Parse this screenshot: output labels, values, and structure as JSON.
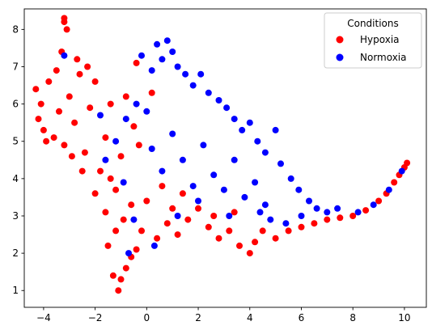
{
  "chart_data": {
    "type": "scatter",
    "title": "",
    "xlabel": "",
    "ylabel": "",
    "xlim": [
      -4.75,
      10.85
    ],
    "ylim": [
      0.55,
      8.55
    ],
    "xticks": [
      -4,
      -2,
      0,
      2,
      4,
      6,
      8,
      10
    ],
    "yticks": [
      1,
      2,
      3,
      4,
      5,
      6,
      7,
      8
    ],
    "xtick_labels": [
      "−4",
      "−2",
      "0",
      "2",
      "4",
      "6",
      "8",
      "10"
    ],
    "ytick_labels": [
      "1",
      "2",
      "3",
      "4",
      "5",
      "6",
      "7",
      "8"
    ],
    "grid": false,
    "legend": {
      "title": "Conditions",
      "position": "top-right",
      "entries": [
        {
          "label": "Hypoxia",
          "color": "#ff0000"
        },
        {
          "label": "Normoxia",
          "color": "#0000ff"
        }
      ]
    },
    "series": [
      {
        "name": "Hypoxia",
        "color": "#ff0000",
        "points": [
          [
            -4.3,
            6.4
          ],
          [
            -4.1,
            6.0
          ],
          [
            -4.2,
            5.6
          ],
          [
            -4.0,
            5.3
          ],
          [
            -3.8,
            6.6
          ],
          [
            -3.6,
            5.1
          ],
          [
            -3.5,
            6.9
          ],
          [
            -3.3,
            7.4
          ],
          [
            -3.2,
            4.9
          ],
          [
            -3.0,
            6.2
          ],
          [
            -2.8,
            5.5
          ],
          [
            -2.6,
            6.8
          ],
          [
            -2.4,
            4.7
          ],
          [
            -2.2,
            5.9
          ],
          [
            -2.0,
            6.6
          ],
          [
            -1.8,
            4.2
          ],
          [
            -1.6,
            5.1
          ],
          [
            -1.4,
            6.0
          ],
          [
            -1.2,
            3.7
          ],
          [
            -1.0,
            4.6
          ],
          [
            -0.8,
            6.2
          ],
          [
            -0.6,
            3.3
          ],
          [
            -0.4,
            7.1
          ],
          [
            -0.2,
            2.6
          ],
          [
            0.0,
            3.4
          ],
          [
            0.2,
            6.3
          ],
          [
            -3.2,
            8.2
          ],
          [
            -3.1,
            8.0
          ],
          [
            -3.2,
            8.3
          ],
          [
            -1.1,
            1.0
          ],
          [
            -1.0,
            1.3
          ],
          [
            -0.8,
            1.6
          ],
          [
            -0.6,
            1.9
          ],
          [
            -0.4,
            2.1
          ],
          [
            -1.3,
            1.4
          ],
          [
            -1.5,
            2.2
          ],
          [
            -1.2,
            2.6
          ],
          [
            -0.9,
            2.9
          ],
          [
            0.4,
            2.4
          ],
          [
            0.8,
            2.8
          ],
          [
            1.2,
            2.5
          ],
          [
            1.6,
            2.9
          ],
          [
            2.0,
            3.2
          ],
          [
            2.4,
            2.7
          ],
          [
            2.8,
            2.4
          ],
          [
            3.2,
            2.6
          ],
          [
            3.6,
            2.2
          ],
          [
            4.0,
            2.0
          ],
          [
            4.2,
            2.3
          ],
          [
            4.5,
            2.6
          ],
          [
            5.0,
            2.4
          ],
          [
            5.5,
            2.6
          ],
          [
            6.0,
            2.7
          ],
          [
            6.5,
            2.8
          ],
          [
            7.0,
            2.9
          ],
          [
            7.5,
            2.95
          ],
          [
            8.0,
            3.0
          ],
          [
            8.5,
            3.15
          ],
          [
            9.0,
            3.4
          ],
          [
            9.3,
            3.6
          ],
          [
            9.6,
            3.9
          ],
          [
            9.8,
            4.1
          ],
          [
            10.0,
            4.3
          ],
          [
            10.1,
            4.42
          ],
          [
            -2.5,
            4.2
          ],
          [
            -2.0,
            3.6
          ],
          [
            -1.6,
            3.1
          ],
          [
            -1.4,
            4.0
          ],
          [
            -0.5,
            5.4
          ],
          [
            -0.3,
            4.9
          ],
          [
            0.6,
            3.8
          ],
          [
            1.0,
            3.2
          ],
          [
            1.4,
            3.6
          ],
          [
            2.6,
            3.0
          ],
          [
            3.4,
            3.1
          ],
          [
            -3.9,
            5.0
          ],
          [
            -3.4,
            5.8
          ],
          [
            -2.9,
            4.6
          ],
          [
            -2.7,
            7.2
          ],
          [
            -2.3,
            7.0
          ]
        ]
      },
      {
        "name": "Normoxia",
        "color": "#0000ff",
        "points": [
          [
            0.4,
            7.6
          ],
          [
            0.6,
            7.2
          ],
          [
            0.8,
            7.7
          ],
          [
            1.0,
            7.4
          ],
          [
            1.2,
            7.0
          ],
          [
            1.5,
            6.8
          ],
          [
            1.8,
            6.5
          ],
          [
            2.1,
            6.8
          ],
          [
            2.4,
            6.3
          ],
          [
            2.8,
            6.1
          ],
          [
            3.1,
            5.9
          ],
          [
            3.4,
            5.6
          ],
          [
            3.7,
            5.3
          ],
          [
            4.0,
            5.5
          ],
          [
            4.3,
            5.0
          ],
          [
            4.6,
            4.7
          ],
          [
            5.0,
            5.3
          ],
          [
            5.2,
            4.4
          ],
          [
            5.6,
            4.0
          ],
          [
            5.9,
            3.7
          ],
          [
            6.3,
            3.4
          ],
          [
            6.6,
            3.2
          ],
          [
            7.0,
            3.1
          ],
          [
            7.4,
            3.2
          ],
          [
            0.0,
            5.8
          ],
          [
            0.2,
            4.8
          ],
          [
            0.6,
            4.2
          ],
          [
            1.0,
            5.2
          ],
          [
            1.4,
            4.5
          ],
          [
            1.8,
            3.8
          ],
          [
            2.2,
            4.9
          ],
          [
            2.6,
            4.1
          ],
          [
            3.0,
            3.7
          ],
          [
            3.4,
            4.5
          ],
          [
            3.8,
            3.5
          ],
          [
            4.2,
            3.9
          ],
          [
            4.6,
            3.3
          ],
          [
            -0.4,
            6.0
          ],
          [
            -0.8,
            5.6
          ],
          [
            -1.2,
            5.0
          ],
          [
            -1.6,
            4.5
          ],
          [
            0.2,
            6.9
          ],
          [
            -0.2,
            7.3
          ],
          [
            -3.2,
            7.3
          ],
          [
            -1.8,
            5.7
          ],
          [
            -0.9,
            3.9
          ],
          [
            -0.5,
            2.9
          ],
          [
            0.3,
            2.2
          ],
          [
            -0.7,
            2.0
          ],
          [
            1.2,
            3.0
          ],
          [
            2.0,
            3.4
          ],
          [
            3.2,
            3.0
          ],
          [
            4.8,
            2.9
          ],
          [
            5.4,
            2.8
          ],
          [
            6.0,
            3.0
          ],
          [
            8.2,
            3.1
          ],
          [
            8.8,
            3.3
          ],
          [
            9.4,
            3.7
          ],
          [
            9.9,
            4.2
          ],
          [
            4.4,
            3.1
          ]
        ]
      }
    ]
  }
}
